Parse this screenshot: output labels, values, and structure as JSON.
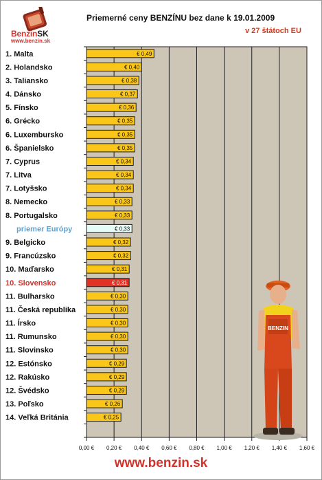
{
  "logo": {
    "brand_main": "Benzin",
    "brand_suffix": "SK",
    "url": "www.benzin.sk"
  },
  "title": "Priemerné ceny BENZÍNU bez dane k 19.01.2009",
  "subtitle": "v 27 štátoch EU",
  "footer": "www.benzin.sk",
  "colors": {
    "bar": "#fac61a",
    "bar_border": "#1e1e1e",
    "highlight_bar": "#e23224",
    "highlight_label": "#d2322a",
    "europe_bar": "#e6faf6",
    "europe_label": "#5aa5d6",
    "plot_bg": "#cdc6b6",
    "gridline": "#1e1e1e"
  },
  "chart_data": {
    "type": "bar",
    "orientation": "horizontal",
    "categories": [
      "1. Malta",
      "2. Holandsko",
      "3. Taliansko",
      "4. Dánsko",
      "5. Fínsko",
      "6. Grécko",
      "6. Luxembursko",
      "6. Španielsko",
      "7. Cyprus",
      "7. Litva",
      "7. Lotyšsko",
      "8. Nemecko",
      "8. Portugalsko",
      "priemer Európy",
      "9. Belgicko",
      "9. Francúzsko",
      "10. Maďarsko",
      "10. Slovensko",
      "11. Bulharsko",
      "11. Česká republika",
      "11. Írsko",
      "11. Rumunsko",
      "11. Slovinsko",
      "12. Estónsko",
      "12. Rakúsko",
      "12. Švédsko",
      "13. Poľsko",
      "14. Veľká Británia",
      ""
    ],
    "values": [
      0.49,
      0.4,
      0.38,
      0.37,
      0.36,
      0.35,
      0.35,
      0.35,
      0.34,
      0.34,
      0.34,
      0.33,
      0.33,
      0.33,
      0.32,
      0.32,
      0.31,
      0.31,
      0.3,
      0.3,
      0.3,
      0.3,
      0.3,
      0.29,
      0.29,
      0.29,
      0.26,
      0.25,
      null
    ],
    "data_labels": [
      "€ 0,49",
      "€ 0,40",
      "€ 0,38",
      "€ 0,37",
      "€ 0,36",
      "€ 0,35",
      "€ 0,35",
      "€ 0,35",
      "€ 0,34",
      "€ 0,34",
      "€ 0,34",
      "€ 0,33",
      "€ 0,33",
      "€ 0,33",
      "€ 0,32",
      "€ 0,32",
      "€ 0,31",
      "€ 0,31",
      "€ 0,30",
      "€ 0,30",
      "€ 0,30",
      "€ 0,30",
      "€ 0,30",
      "€ 0,29",
      "€ 0,29",
      "€ 0,29",
      "€ 0,26",
      "€ 0,25",
      ""
    ],
    "highlight": "10. Slovensko",
    "average": "priemer Európy",
    "xlim": [
      0,
      1.6
    ],
    "x_ticks": [
      0,
      0.2,
      0.4,
      0.6,
      0.8,
      1.0,
      1.2,
      1.4,
      1.6
    ],
    "x_tick_labels": [
      "0,00 €",
      "0,20 €",
      "0,40 €",
      "0,60 €",
      "0,80 €",
      "1,00 €",
      "1,20 €",
      "1,40 €",
      "1,60 €"
    ],
    "grid": true
  }
}
